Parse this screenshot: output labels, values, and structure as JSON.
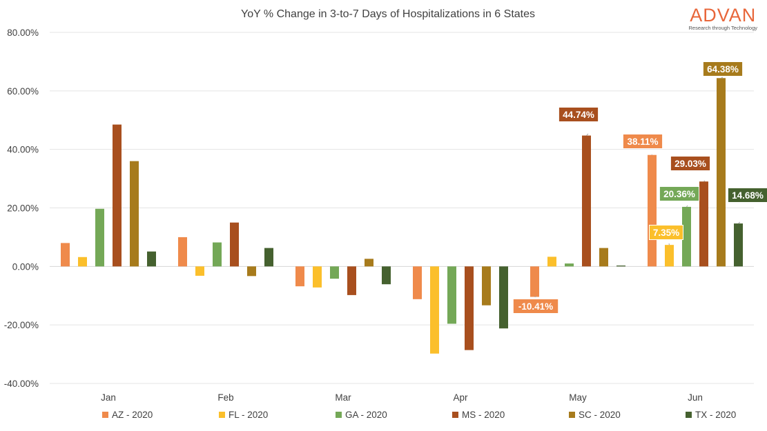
{
  "logo": {
    "word": "ADVAN",
    "tagline": "Research through Technology"
  },
  "chart_data": {
    "type": "bar",
    "title": "YoY % Change in 3-to-7 Days of Hospitalizations in 6 States",
    "categories": [
      "Jan",
      "Feb",
      "Mar",
      "Apr",
      "May",
      "Jun"
    ],
    "ylim": [
      -40,
      80
    ],
    "yticks": [
      -40,
      -20,
      0,
      20,
      40,
      60,
      80
    ],
    "ytick_labels": [
      "-40.00%",
      "-20.00%",
      "0.00%",
      "20.00%",
      "40.00%",
      "60.00%",
      "80.00%"
    ],
    "gridlines": true,
    "legend_position": "bottom",
    "series": [
      {
        "name": "AZ - 2020",
        "color": "#ef8a4b",
        "values": [
          8.0,
          10.0,
          -6.8,
          -11.2,
          -10.41,
          38.11
        ]
      },
      {
        "name": "FL - 2020",
        "color": "#fbbf2b",
        "values": [
          3.2,
          -3.2,
          -7.2,
          -29.8,
          3.3,
          7.35
        ]
      },
      {
        "name": "GA - 2020",
        "color": "#74a857",
        "values": [
          19.7,
          8.2,
          -4.2,
          -19.6,
          1.0,
          20.36
        ]
      },
      {
        "name": "MS - 2020",
        "color": "#a84f1e",
        "values": [
          48.5,
          15.0,
          -9.8,
          -28.6,
          44.74,
          29.03
        ]
      },
      {
        "name": "SC - 2020",
        "color": "#a77b1c",
        "values": [
          36.0,
          -3.3,
          2.6,
          -13.3,
          6.3,
          64.38
        ]
      },
      {
        "name": "TX - 2020",
        "color": "#45612f",
        "values": [
          5.1,
          6.3,
          -6.1,
          -21.2,
          0.3,
          14.68
        ]
      }
    ],
    "data_labels": [
      {
        "series": 0,
        "category": 4,
        "text": "-10.41%"
      },
      {
        "series": 3,
        "category": 4,
        "text": "44.74%"
      },
      {
        "series": 0,
        "category": 5,
        "text": "38.11%"
      },
      {
        "series": 1,
        "category": 5,
        "text": "7.35%"
      },
      {
        "series": 2,
        "category": 5,
        "text": "20.36%"
      },
      {
        "series": 3,
        "category": 5,
        "text": "29.03%"
      },
      {
        "series": 4,
        "category": 5,
        "text": "64.38%"
      },
      {
        "series": 5,
        "category": 5,
        "text": "14.68%"
      }
    ]
  }
}
